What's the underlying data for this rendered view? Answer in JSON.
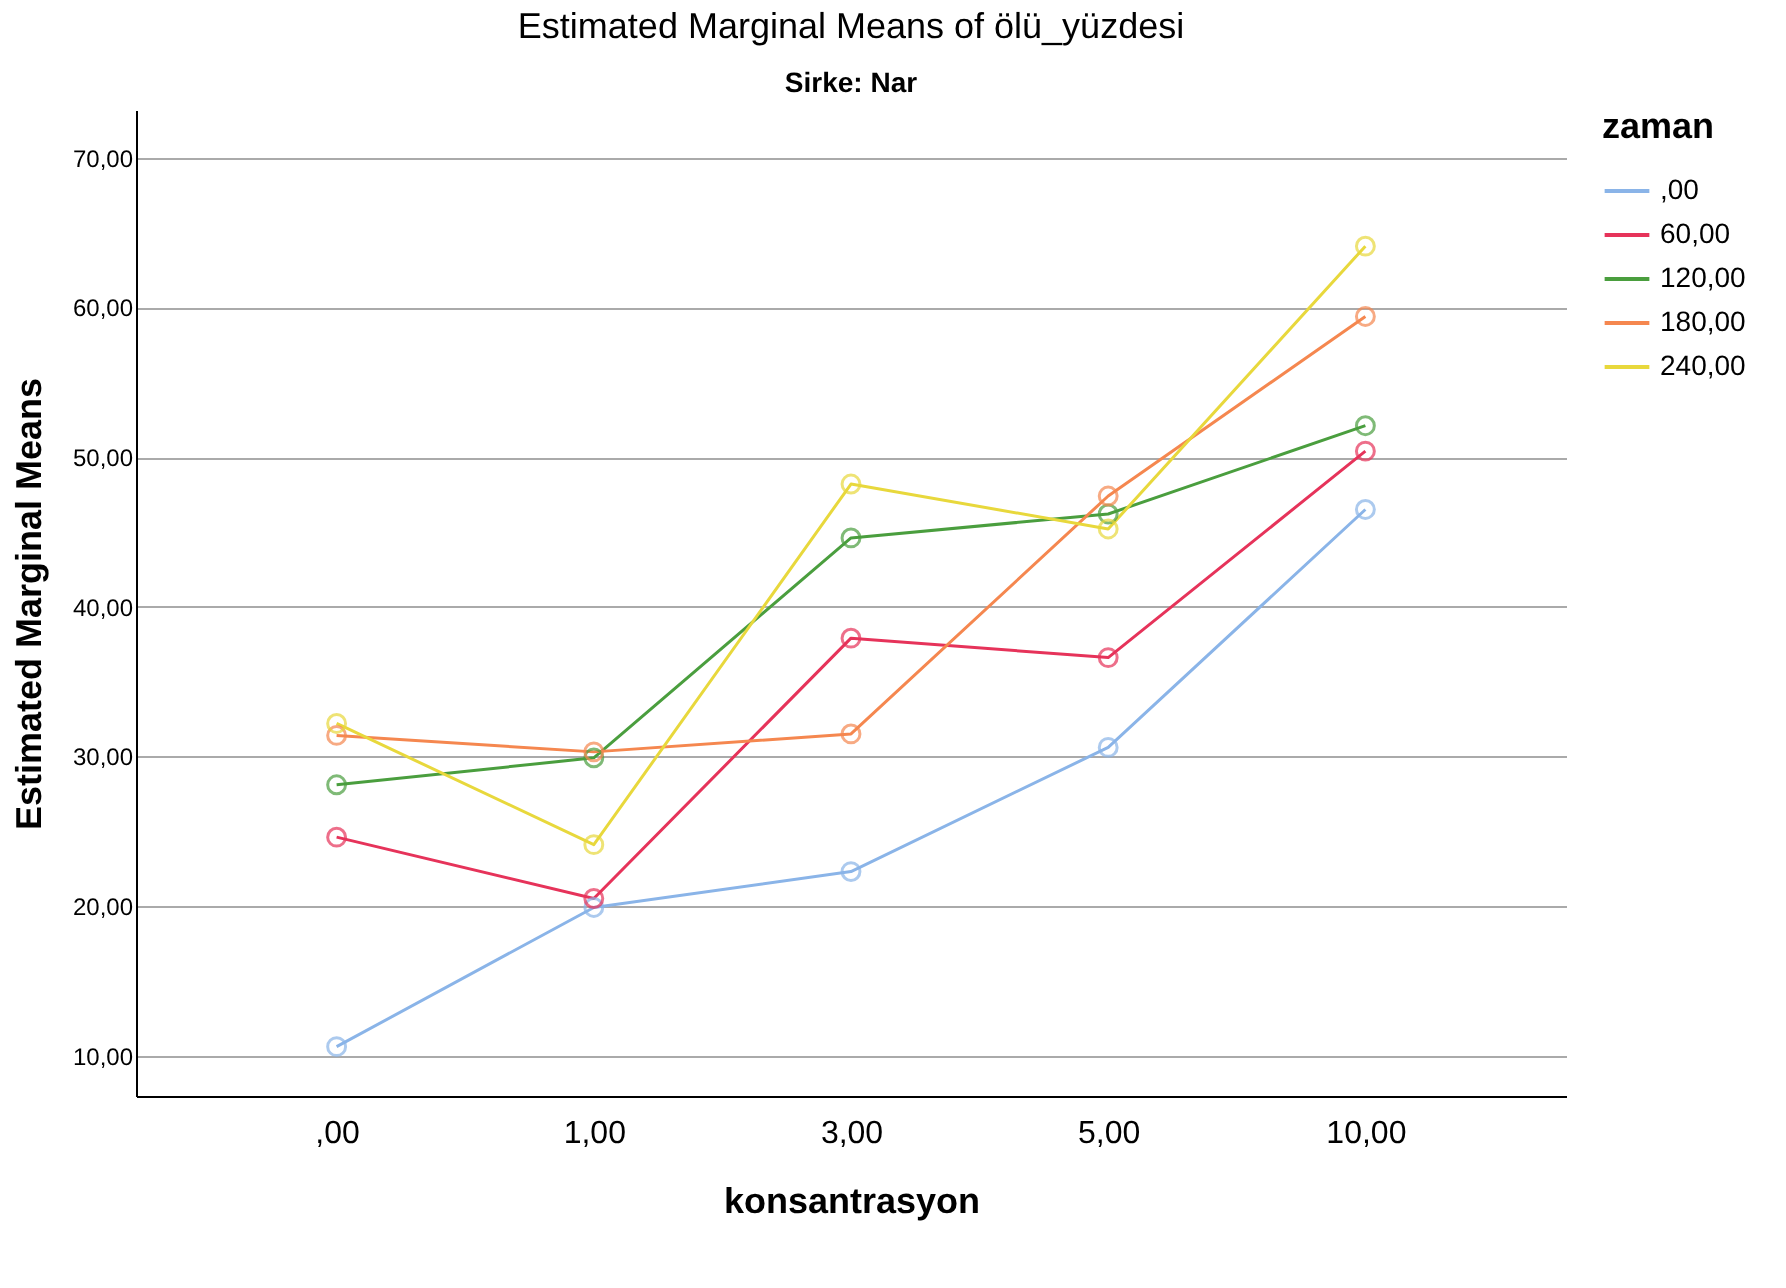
{
  "chart_data": {
    "type": "line",
    "title": "Estimated Marginal Means of ölü_yüzdesi",
    "subtitle": "Sirke: Nar",
    "xlabel": "konsantrasyon",
    "ylabel": "Estimated Marginal Means",
    "legend_title": "zaman",
    "categories": [
      ",00",
      "1,00",
      "3,00",
      "5,00",
      "10,00"
    ],
    "series": [
      {
        "name": ",00",
        "color": "#8ab4e8",
        "values": [
          10.6,
          19.9,
          22.3,
          30.6,
          46.5
        ]
      },
      {
        "name": "60,00",
        "color": "#e6335a",
        "values": [
          24.6,
          20.5,
          37.9,
          36.6,
          50.4
        ]
      },
      {
        "name": "120,00",
        "color": "#4a9e3e",
        "values": [
          28.1,
          29.9,
          44.6,
          46.2,
          52.1
        ]
      },
      {
        "name": "180,00",
        "color": "#f5874f",
        "values": [
          31.4,
          30.3,
          31.5,
          47.4,
          59.4
        ]
      },
      {
        "name": "240,00",
        "color": "#e8d83c",
        "values": [
          32.2,
          24.1,
          48.2,
          45.2,
          64.1
        ]
      }
    ],
    "ylim": [
      7.3,
      73.2
    ],
    "yticks": [
      {
        "value": 10,
        "label": "10,00"
      },
      {
        "value": 20,
        "label": "20,00"
      },
      {
        "value": 30,
        "label": "30,00"
      },
      {
        "value": 40,
        "label": "40,00"
      },
      {
        "value": 50,
        "label": "50,00"
      },
      {
        "value": 60,
        "label": "60,00"
      },
      {
        "value": 70,
        "label": "70,00"
      }
    ],
    "grid": "y",
    "legend": "top right",
    "marker": "circle",
    "line_style": "solid"
  }
}
